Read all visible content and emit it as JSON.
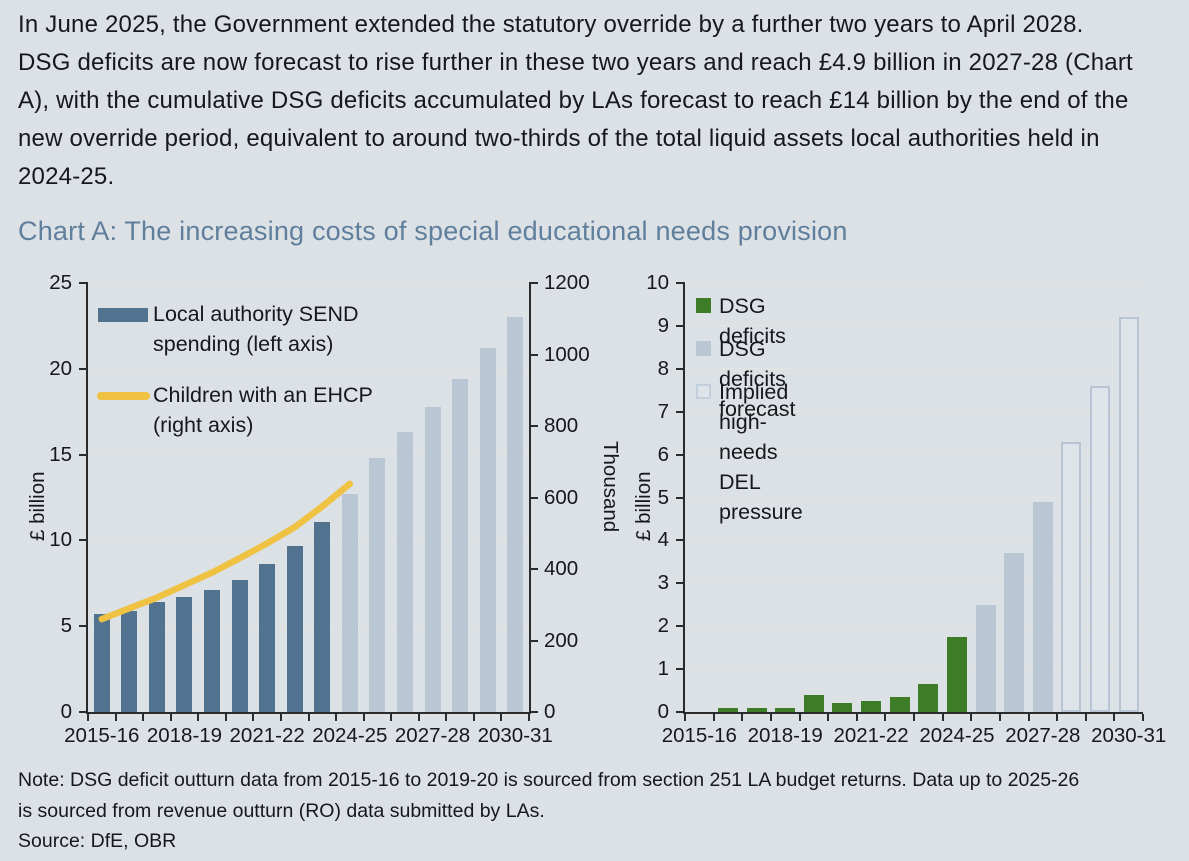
{
  "page": {
    "background": "#dce1e6",
    "intro_paragraph": "In June 2025, the Government extended the statutory override by a further two years to April 2028. DSG deficits are now forecast to rise further in these two years and reach £4.9 billion in 2027-28 (Chart A), with the cumulative DSG deficits accumulated by LAs forecast to reach £14 billion by the end of the new override period, equivalent to around two-thirds of the total liquid assets local authorities held in 2024-25.",
    "chart_title": "Chart A: The increasing costs of special educational needs provision",
    "note": "Note: DSG deficit outturn data from 2015-16 to 2019-20 is sourced from section 251 LA budget returns. Data up to 2025-26 is sourced from revenue outturn (RO) data submitted by LAs.",
    "source": "Source: DfE, OBR",
    "title_color": "#5f7f9c",
    "text_color": "#17171e"
  },
  "chart_data": [
    {
      "type": "bar",
      "subtype": "bar-plus-line-dual-axis",
      "categories": [
        "2015-16",
        "2016-17",
        "2017-18",
        "2018-19",
        "2019-20",
        "2020-21",
        "2021-22",
        "2022-23",
        "2023-24",
        "2024-25",
        "2025-26",
        "2026-27",
        "2027-28",
        "2028-29",
        "2029-30",
        "2030-31"
      ],
      "x_axis_shown_labels": [
        "2015-16",
        "2018-19",
        "2021-22",
        "2024-25",
        "2027-28",
        "2030-31"
      ],
      "left_axis": {
        "label": "£ billion",
        "min": 0,
        "max": 25,
        "step": 5
      },
      "right_axis": {
        "label": "Thousand",
        "min": 0,
        "max": 1200,
        "step": 200
      },
      "grid": true,
      "series": [
        {
          "name": "Local authority SEND spending (left axis)",
          "type": "bar",
          "axis": "left",
          "values": [
            5.7,
            5.9,
            6.4,
            6.7,
            7.1,
            7.7,
            8.6,
            9.7,
            11.1,
            12.7,
            14.8,
            16.3,
            17.8,
            19.4,
            21.2,
            23.0
          ],
          "forecast_from_index": 9,
          "color": "#52738f",
          "forecast_color": "#b9c6d3"
        },
        {
          "name": "Children with an EHCP (right axis)",
          "type": "line",
          "axis": "right",
          "values": [
            260,
            290,
            320,
            355,
            390,
            430,
            472,
            517,
            575,
            638
          ],
          "color": "#f0c243"
        }
      ]
    },
    {
      "type": "bar",
      "categories": [
        "2015-16",
        "2016-17",
        "2017-18",
        "2018-19",
        "2019-20",
        "2020-21",
        "2021-22",
        "2022-23",
        "2023-24",
        "2024-25",
        "2025-26",
        "2026-27",
        "2027-28",
        "2028-29",
        "2029-30",
        "2030-31"
      ],
      "x_axis_shown_labels": [
        "2015-16",
        "2018-19",
        "2021-22",
        "2024-25",
        "2027-28",
        "2030-31"
      ],
      "left_axis": {
        "label": "£ billion",
        "min": 0,
        "max": 10,
        "step": 1
      },
      "grid": true,
      "series": [
        {
          "name": "DSG deficits",
          "style": "filled",
          "color": "#3e7d27",
          "values": [
            0,
            0.1,
            0.1,
            0.1,
            0.4,
            0.2,
            0.25,
            0.35,
            0.65,
            1.75,
            null,
            null,
            null,
            null,
            null,
            null
          ]
        },
        {
          "name": "DSG deficits forecast",
          "style": "filled",
          "color": "#b9c6d3",
          "values": [
            null,
            null,
            null,
            null,
            null,
            null,
            null,
            null,
            null,
            null,
            2.5,
            3.7,
            4.9,
            null,
            null,
            null
          ]
        },
        {
          "name": "Implied high-needs DEL pressure",
          "style": "outline",
          "border_color": "#b6c4d3",
          "fill_color": "#dfe4e9",
          "values": [
            null,
            null,
            null,
            null,
            null,
            null,
            null,
            null,
            null,
            null,
            null,
            null,
            null,
            6.3,
            7.6,
            9.2
          ]
        }
      ]
    }
  ]
}
